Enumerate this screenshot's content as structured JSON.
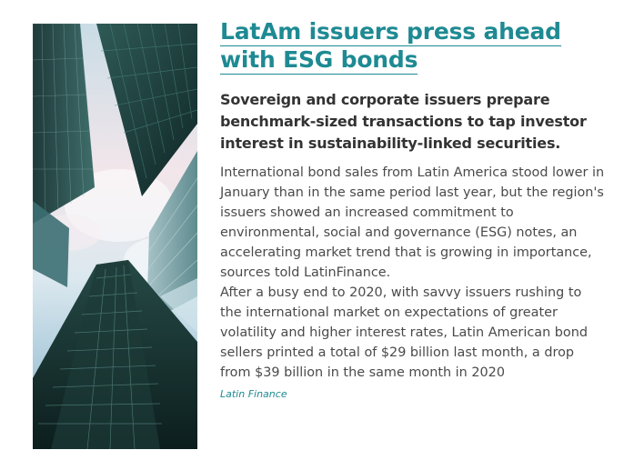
{
  "article": {
    "headline": "LatAm issuers press ahead with ESG bonds",
    "headline_line1": "LatAm issuers press ahead",
    "headline_line2": "with ESG bonds",
    "standfirst": "Sovereign and corporate issuers prepare benchmark-sized transactions to tap investor interest in sustainability-linked securities.",
    "paragraphs": [
      "International bond sales from Latin America stood lower in January than in the same period last year, but the region's issuers showed an increased commitment to environmental, social and governance (ESG) notes, an accelerating market trend that is growing in importance, sources told LatinFinance.",
      "After a busy end to 2020, with savvy issuers rushing to the international market on expectations of greater volatility and higher interest rates, Latin American bond sellers printed a total of $29 billion last month, a drop from $39 billion in the same month in 2020"
    ],
    "source": "Latin Finance"
  },
  "image": {
    "subject": "skyscrapers-photo"
  },
  "colors": {
    "accent": "#1e8a93",
    "heading_text": "#333333",
    "body_text": "#4a4a4a"
  }
}
